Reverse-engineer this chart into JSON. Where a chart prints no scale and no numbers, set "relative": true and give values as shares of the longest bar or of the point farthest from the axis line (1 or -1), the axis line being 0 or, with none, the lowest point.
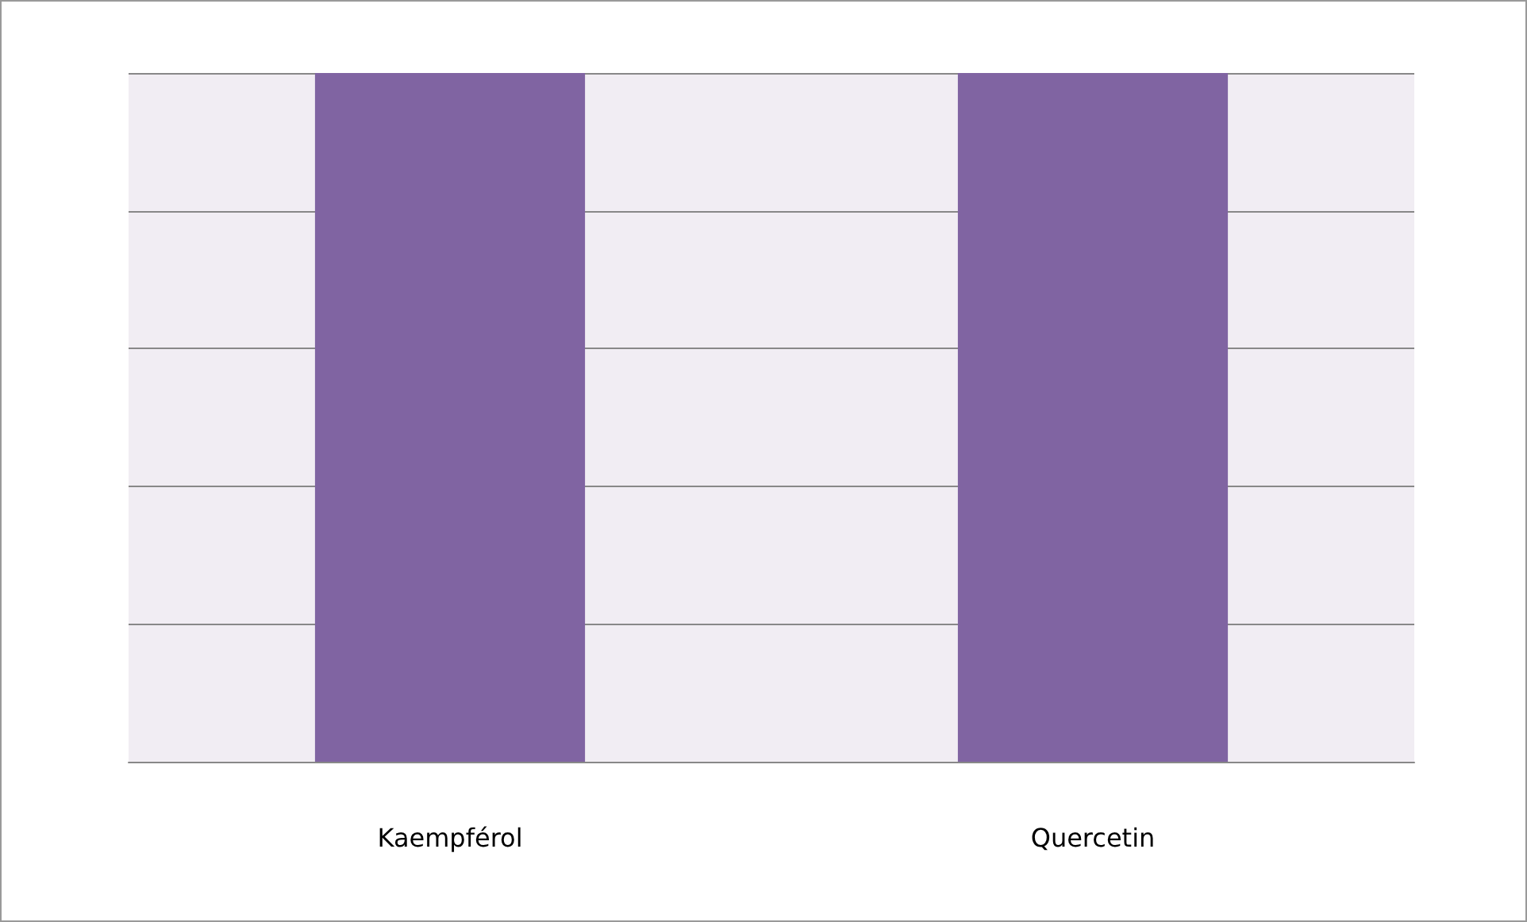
{
  "chart_data": {
    "type": "bar",
    "categories": [
      "Kaempférol",
      "Quercetin"
    ],
    "values": [
      1,
      1
    ],
    "color": "#8064a2",
    "relative": true,
    "grid": "y"
  }
}
